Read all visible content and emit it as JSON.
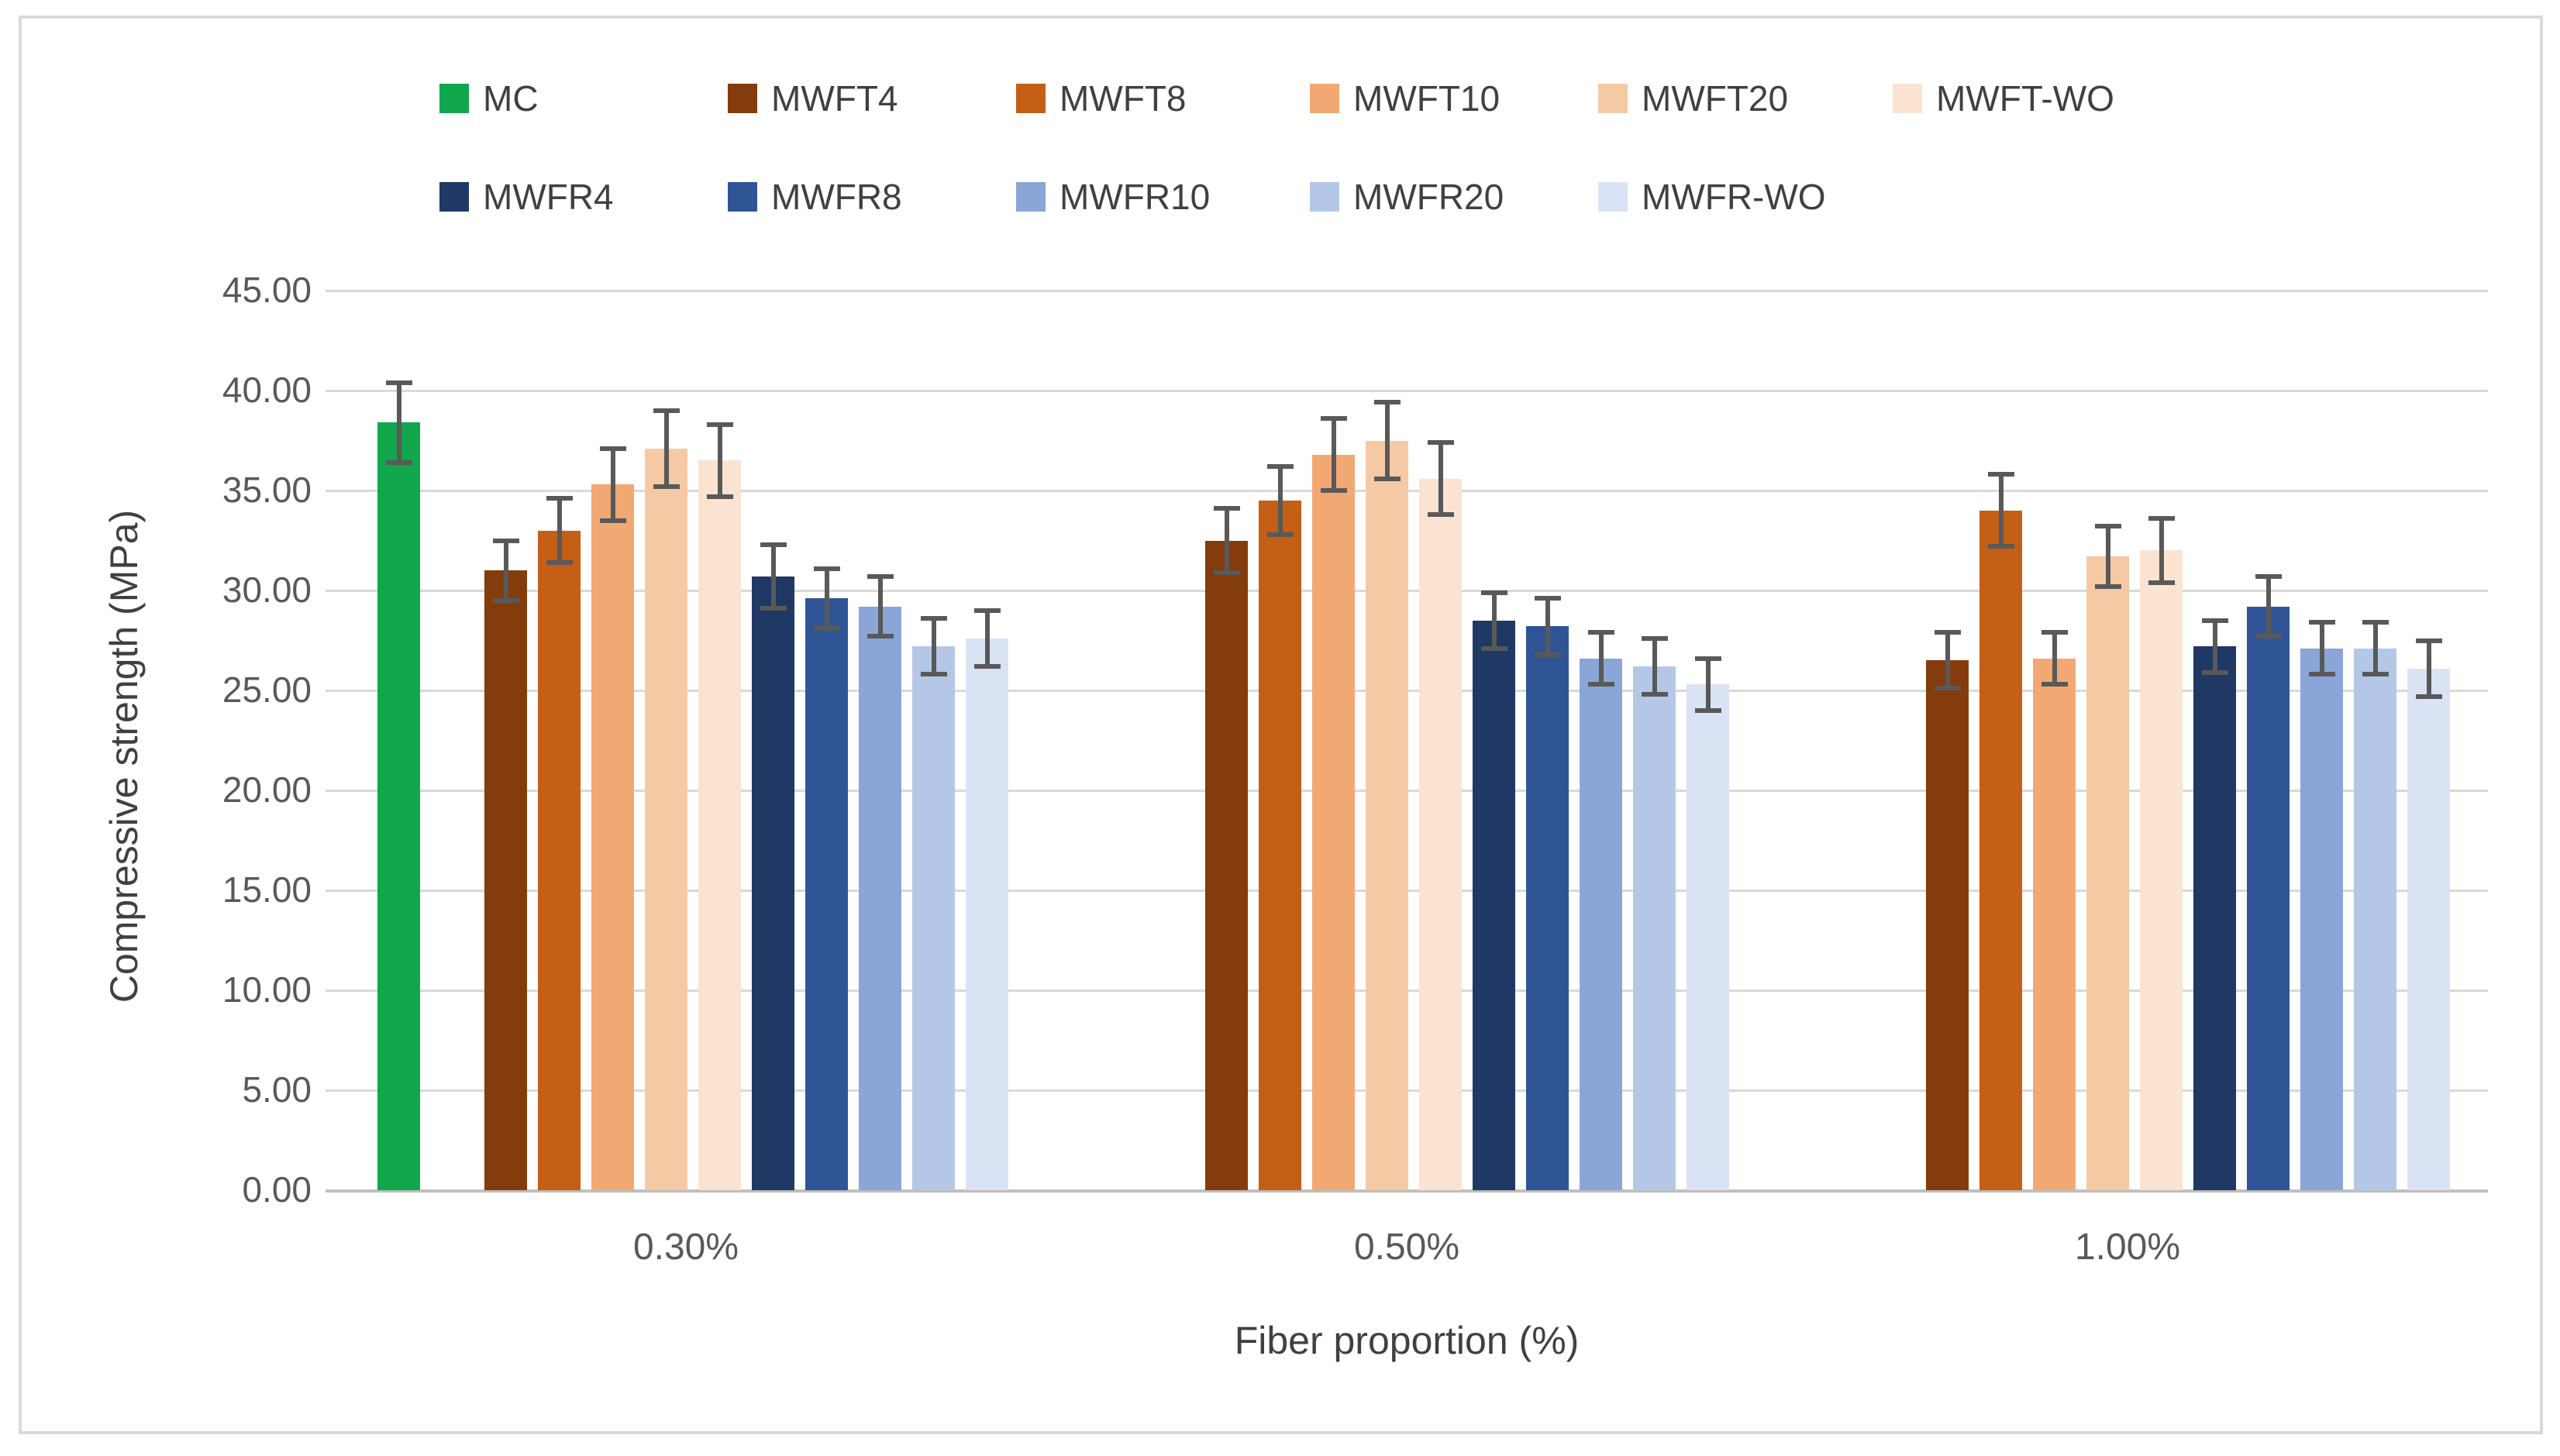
{
  "chart_data": {
    "type": "bar",
    "title": "",
    "xlabel": "Fiber proportion (%)",
    "ylabel": "Compressive strength (MPa)",
    "categories": [
      "0.30%",
      "0.50%",
      "1.00%"
    ],
    "ylim": [
      0,
      45
    ],
    "ytick_labels": [
      "45.00",
      "40.00",
      "35.00",
      "30.00",
      "25.00",
      "20.00",
      "15.00",
      "10.00",
      "5.00",
      "0.00"
    ],
    "grid": true,
    "legend_position": "top",
    "legend_rows": [
      [
        "MC",
        "MWFT4",
        "MWFT8",
        "MWFT10",
        "MWFT20",
        "MWFT-WO"
      ],
      [
        "MWFR4",
        "MWFR8",
        "MWFR10",
        "MWFR20",
        "MWFR-WO"
      ]
    ],
    "error_bar_color": "#595959",
    "gridline_color": "#d9d9d9",
    "axis_line_color": "#bfbfbf",
    "series": [
      {
        "name": "MC",
        "color": "#12A74D",
        "values": [
          38.4,
          null,
          null
        ],
        "errors": [
          2.0,
          null,
          null
        ]
      },
      {
        "name": "MWFT4",
        "color": "#843C0C",
        "values": [
          31.0,
          32.5,
          26.5
        ],
        "errors": [
          1.5,
          1.6,
          1.4
        ]
      },
      {
        "name": "MWFT8",
        "color": "#C55F15",
        "values": [
          33.0,
          34.5,
          34.0
        ],
        "errors": [
          1.6,
          1.7,
          1.8
        ]
      },
      {
        "name": "MWFT10",
        "color": "#F2A873",
        "values": [
          35.3,
          36.8,
          26.6
        ],
        "errors": [
          1.8,
          1.8,
          1.3
        ]
      },
      {
        "name": "MWFT20",
        "color": "#F6C9A5",
        "values": [
          37.1,
          37.5,
          31.7
        ],
        "errors": [
          1.9,
          1.9,
          1.5
        ]
      },
      {
        "name": "MWFT-WO",
        "color": "#FAE3D1",
        "values": [
          36.5,
          35.6,
          32.0
        ],
        "errors": [
          1.8,
          1.8,
          1.6
        ]
      },
      {
        "name": "MWFR4",
        "color": "#1F3864",
        "values": [
          30.7,
          28.5,
          27.2
        ],
        "errors": [
          1.6,
          1.4,
          1.3
        ]
      },
      {
        "name": "MWFR8",
        "color": "#2F5597",
        "values": [
          29.6,
          28.2,
          29.2
        ],
        "errors": [
          1.5,
          1.4,
          1.5
        ]
      },
      {
        "name": "MWFR10",
        "color": "#8AA5D8",
        "values": [
          29.2,
          26.6,
          27.1
        ],
        "errors": [
          1.5,
          1.3,
          1.3
        ]
      },
      {
        "name": "MWFR20",
        "color": "#B4C7E7",
        "values": [
          27.2,
          26.2,
          27.1
        ],
        "errors": [
          1.4,
          1.4,
          1.3
        ]
      },
      {
        "name": "MWFR-WO",
        "color": "#DAE3F3",
        "values": [
          27.6,
          25.3,
          26.1
        ],
        "errors": [
          1.4,
          1.3,
          1.4
        ]
      }
    ]
  }
}
